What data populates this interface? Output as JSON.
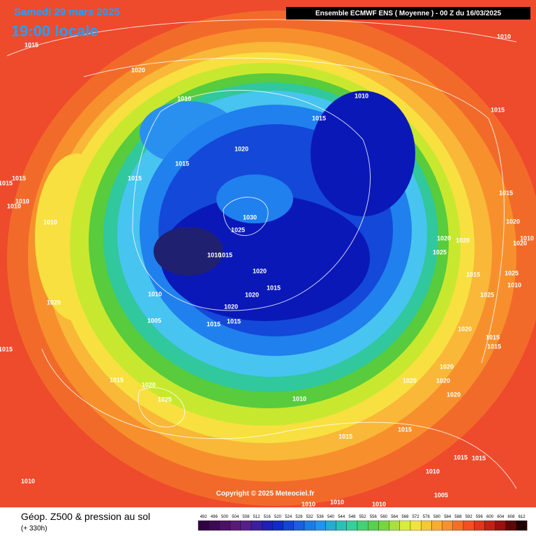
{
  "header": {
    "date": "Samedi 29 mars 2025",
    "time": "19:00 locale",
    "model": "Ensemble ECMWF ENS  ( Moyenne )  -  00 Z du 16/03/2025"
  },
  "copyright": "Copyright © 2025 Meteociel.fr",
  "footer": {
    "title": "Géop. Z500 & pression au sol",
    "lead": "(+ 330h)"
  },
  "scale": {
    "ticks": [
      492,
      496,
      500,
      504,
      508,
      512,
      516,
      520,
      524,
      528,
      532,
      536,
      540,
      544,
      548,
      552,
      556,
      560,
      564,
      568,
      572,
      576,
      580,
      584,
      588,
      592,
      596,
      600,
      604,
      608,
      612
    ]
  },
  "isobar_labels": [
    "1015",
    "1020",
    "1010",
    "1010",
    "1015",
    "1010",
    "1015",
    "1020",
    "1015",
    "1015",
    "1015",
    "1015",
    "1010",
    "1010",
    "1010",
    "1030",
    "1025",
    "1010",
    "1015",
    "1020",
    "1015",
    "1010",
    "1020",
    "1020",
    "1005",
    "1015",
    "1015",
    "1020",
    "1015",
    "1015",
    "1020",
    "1025",
    "1010",
    "1015",
    "1015",
    "1020",
    "1020",
    "1020",
    "1020",
    "1015",
    "1015",
    "1020",
    "1010",
    "1010",
    "1010",
    "1010",
    "1005",
    "1010",
    "1015",
    "1015",
    "1015",
    "1020",
    "1020",
    "1025",
    "1025",
    "1010",
    "1015",
    "1025",
    "1020",
    "1020",
    "1010"
  ]
}
